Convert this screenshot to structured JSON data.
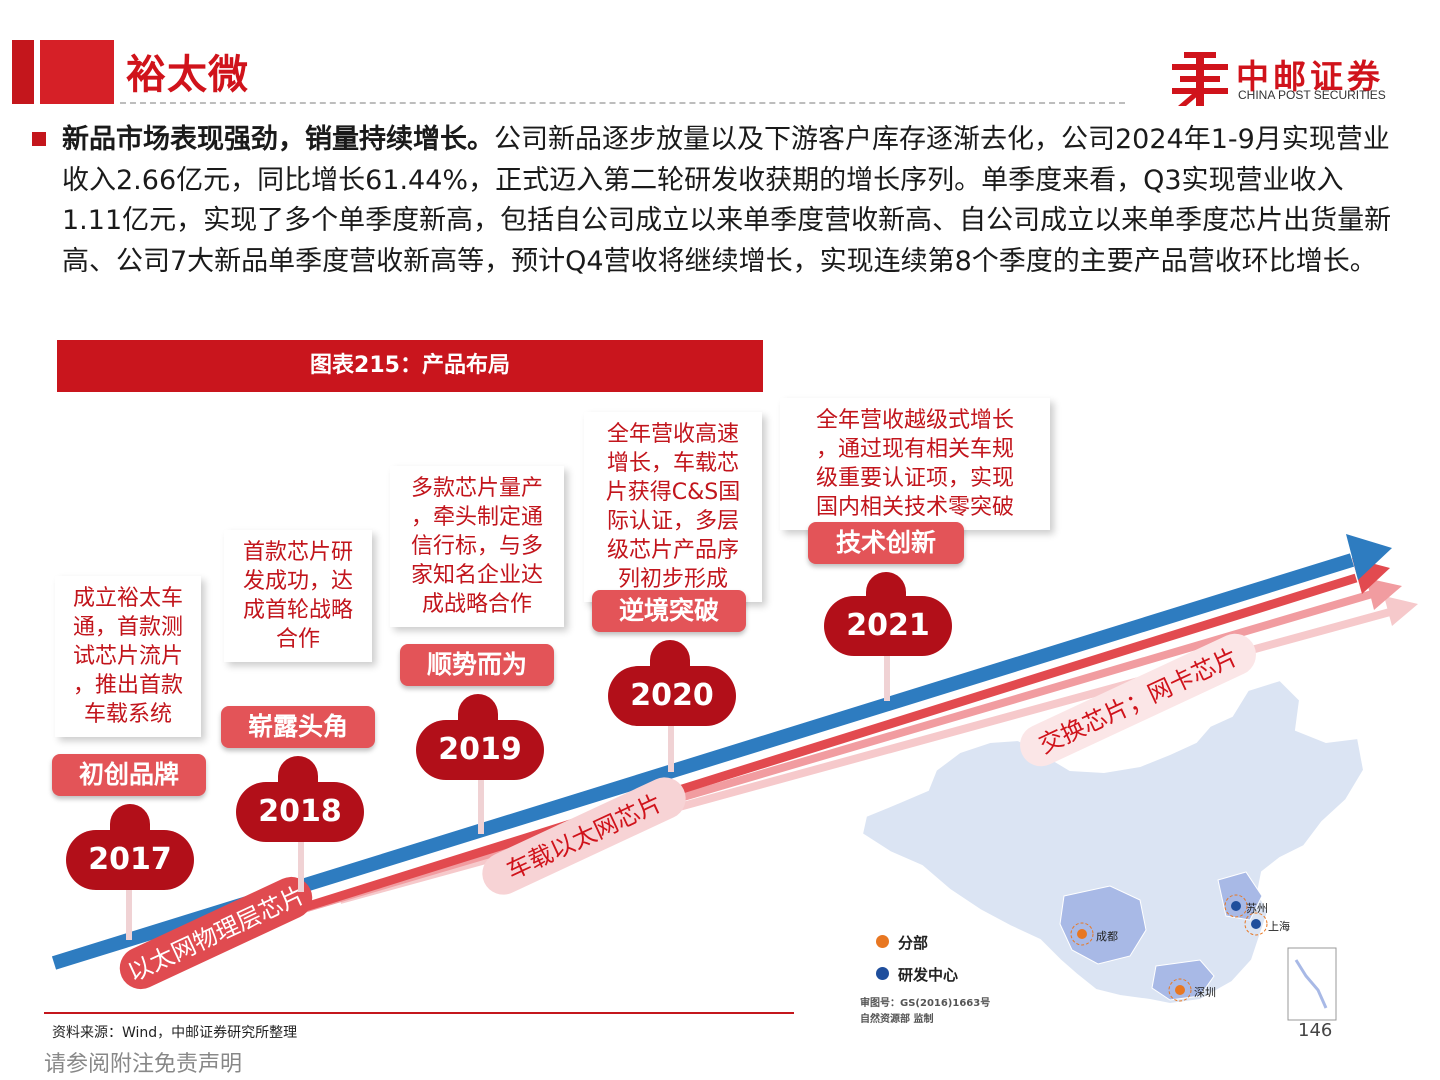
{
  "header": {
    "title": "裕太微",
    "logo_cn": "中邮证券",
    "logo_en": "CHINA POST SECURITIES"
  },
  "body": {
    "bold_lead": "新品市场表现强劲，销量持续增长。",
    "text": "公司新品逐步放量以及下游客户库存逐渐去化，公司2024年1-9月实现营业收入2.66亿元，同比增长61.44%，正式迈入第二轮研发收获期的增长序列。单季度来看，Q3实现营业收入1.11亿元，实现了多个单季度新高，包括自公司成立以来单季度营收新高、自公司成立以来单季度芯片出货量新高、公司7大新品单季度营收新高等，预计Q4营收将继续增长，实现连续第8个季度的主要产品营收环比增长。"
  },
  "figure": {
    "title": "图表215：产品布局",
    "milestones": [
      {
        "year": "2017",
        "label": "初创品牌",
        "desc_lines": [
          "成立裕太车",
          "通，首款测",
          "试芯片流片",
          "，推出首款",
          "车载系统"
        ]
      },
      {
        "year": "2018",
        "label": "崭露头角",
        "desc_lines": [
          "首款芯片研",
          "发成功，达",
          "成首轮战略",
          "合作"
        ]
      },
      {
        "year": "2019",
        "label": "顺势而为",
        "desc_lines": [
          "多款芯片量产",
          "，牵头制定通",
          "信行标，与多",
          "家知名企业达",
          "成战略合作"
        ]
      },
      {
        "year": "2020",
        "label": "逆境突破",
        "desc_lines": [
          "全年营收高速",
          "增长，车载芯",
          "片获得C&S国",
          "际认证，多层",
          "级芯片产品序",
          "列初步形成"
        ]
      },
      {
        "year": "2021",
        "label": "技术创新",
        "desc_lines": [
          "全年营收越级式增长",
          "，通过现有相关车规",
          "级重要认证项，实现",
          "国内相关技术零突破"
        ]
      }
    ],
    "product_lines": [
      "以太网物理层芯片",
      "车载以太网芯片",
      "交换芯片；网卡芯片"
    ],
    "map": {
      "legend_branch": "分部",
      "legend_rd": "研发中心",
      "cities": [
        "苏州",
        "上海",
        "成都",
        "深圳"
      ],
      "approval_line1": "审图号：GS(2016)1663号",
      "approval_line2": "自然资源部 监制",
      "branch_color": "#e87722",
      "rd_color": "#1f4e9c"
    }
  },
  "footer": {
    "source": "资料来源：Wind，中邮证券研究所整理",
    "page": "146",
    "disclaimer": "请参阅附注免责声明"
  },
  "colors": {
    "brand_red": "#c4161c",
    "arrow_blue": "#2e7cc0",
    "year_red": "#b20f19",
    "label_red": "#e35458"
  }
}
